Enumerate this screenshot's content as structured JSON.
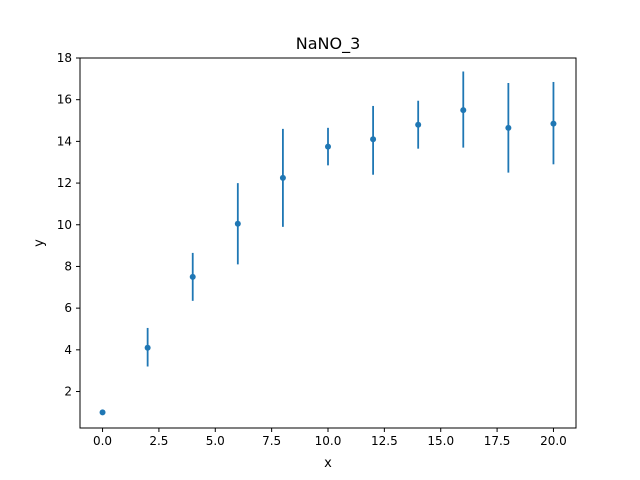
{
  "chart_data": {
    "type": "scatter",
    "title": "NaNO_3",
    "xlabel": "x",
    "ylabel": "y",
    "xlim": [
      -1.0,
      21.0
    ],
    "ylim": [
      0.25,
      18.0
    ],
    "xticks": [
      0.0,
      2.5,
      5.0,
      7.5,
      10.0,
      12.5,
      15.0,
      17.5,
      20.0
    ],
    "xtick_labels": [
      "0.0",
      "2.5",
      "5.0",
      "7.5",
      "10.0",
      "12.5",
      "15.0",
      "17.5",
      "20.0"
    ],
    "yticks": [
      2,
      4,
      6,
      8,
      10,
      12,
      14,
      16,
      18
    ],
    "ytick_labels": [
      "2",
      "4",
      "6",
      "8",
      "10",
      "12",
      "14",
      "16",
      "18"
    ],
    "grid": false,
    "color": "#1f77b4",
    "series": [
      {
        "x": [
          0,
          2,
          4,
          6,
          8,
          10,
          12,
          14,
          16,
          18,
          20
        ],
        "y": [
          1.0,
          4.1,
          7.5,
          10.05,
          12.25,
          13.75,
          14.1,
          14.8,
          15.5,
          14.65,
          14.85
        ],
        "yerr_low": [
          1.0,
          3.2,
          6.35,
          8.1,
          9.9,
          12.85,
          12.4,
          13.65,
          13.7,
          12.5,
          12.9
        ],
        "yerr_high": [
          1.0,
          5.05,
          8.65,
          12.0,
          14.6,
          14.65,
          15.7,
          15.95,
          17.35,
          16.8,
          16.85
        ]
      }
    ]
  }
}
